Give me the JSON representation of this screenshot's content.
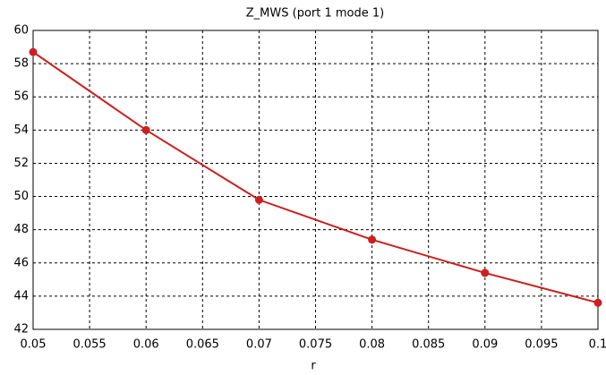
{
  "chart_data": {
    "type": "line",
    "title": "Z_MWS (port 1 mode 1)",
    "x_label": "r",
    "x": [
      0.05,
      0.06,
      0.07,
      0.08,
      0.09,
      0.1
    ],
    "series": [
      {
        "name": "Z_MWS",
        "color": "#cc1f1f",
        "values": [
          58.7,
          54.0,
          49.8,
          47.4,
          45.4,
          43.6
        ]
      }
    ],
    "xlim": [
      0.05,
      0.1
    ],
    "xticks": [
      0.05,
      0.055,
      0.06,
      0.065,
      0.07,
      0.075,
      0.08,
      0.085,
      0.09,
      0.095,
      0.1
    ],
    "ylim": [
      42,
      60
    ],
    "yticks": [
      42,
      44,
      46,
      48,
      50,
      52,
      54,
      56,
      58,
      60
    ],
    "grid": true
  }
}
